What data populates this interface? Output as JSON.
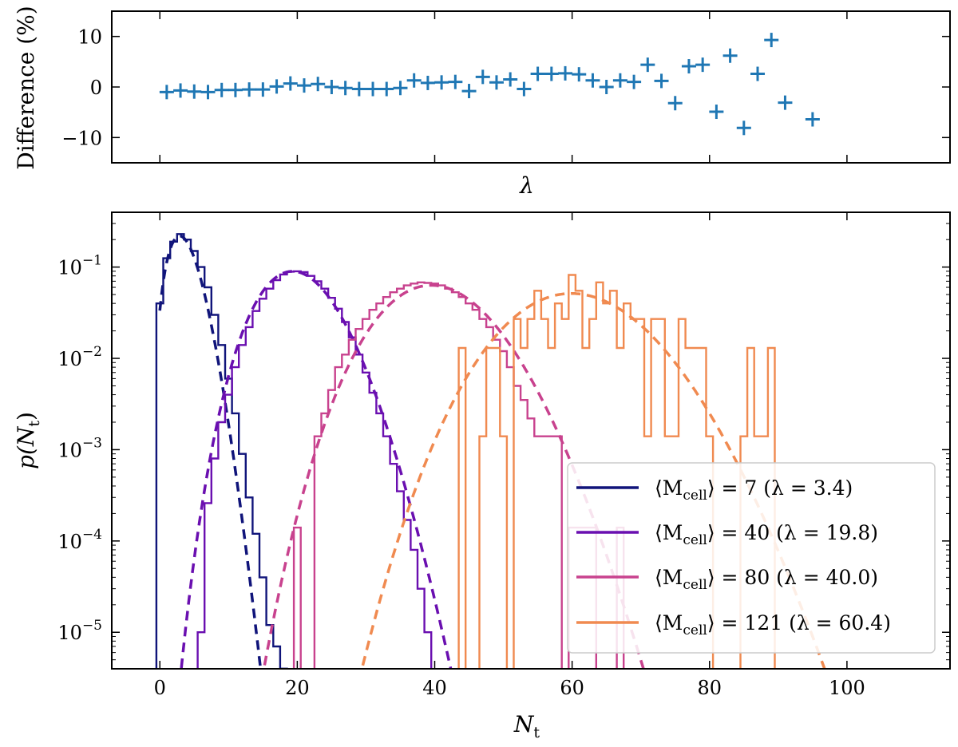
{
  "chart_data": [
    {
      "type": "scatter",
      "name": "difference-panel",
      "xlabel": "λ",
      "ylabel": "Difference (%)",
      "xlim": [
        -7,
        115
      ],
      "ylim": [
        -15,
        15
      ],
      "yticks": [
        10,
        0,
        -10
      ],
      "ytick_labels": [
        "10",
        "0",
        "−10"
      ],
      "xticks": [
        0,
        20,
        40,
        60,
        80,
        100
      ],
      "marker": "+",
      "color": "#1f77b4",
      "x": [
        1,
        3,
        5,
        7,
        9,
        11,
        13,
        15,
        17,
        19,
        21,
        23,
        25,
        27,
        29,
        31,
        33,
        35,
        37,
        39,
        41,
        43,
        45,
        47,
        49,
        51,
        53,
        55,
        57,
        59,
        61,
        63,
        65,
        67,
        69,
        71,
        73,
        75,
        77,
        79,
        81,
        83,
        85,
        87,
        89,
        91,
        95
      ],
      "y": [
        -1,
        -0.7,
        -0.9,
        -1,
        -0.6,
        -0.6,
        -0.5,
        -0.5,
        0.1,
        0.7,
        0.3,
        0.6,
        0,
        -0.2,
        -0.4,
        -0.4,
        -0.4,
        -0.2,
        1.3,
        0.8,
        0.9,
        1,
        -0.8,
        2,
        0.9,
        1.5,
        -0.4,
        2.6,
        2.6,
        2.7,
        2.5,
        1.3,
        0,
        1.3,
        1,
        4.4,
        1.2,
        -3.2,
        4.1,
        4.4,
        -4.9,
        6.2,
        -8.1,
        2.6,
        9.3,
        -3.1,
        -6.4
      ]
    },
    {
      "type": "histogram",
      "name": "distribution-panel",
      "xlabel": "N",
      "xlabel_sub": "t",
      "ylabel": "p(N",
      "ylabel_sub": "t",
      "ylabel_close": ")",
      "xlim": [
        -7,
        115
      ],
      "ylim_log10": [
        -5.4,
        -0.4
      ],
      "xticks": [
        0,
        20,
        40,
        60,
        80,
        100
      ],
      "xtick_labels": [
        "0",
        "20",
        "40",
        "60",
        "80",
        "100"
      ],
      "yticks_exp": [
        -1,
        -2,
        -3,
        -4,
        -5
      ],
      "ytick_base": "10",
      "ytick_exps": [
        "−1",
        "−2",
        "−3",
        "−4",
        "−5"
      ],
      "series": [
        {
          "legend_pre": "⟨M",
          "legend_sub": "cell",
          "legend_post": "⟩ = 7 (λ = 3.4)",
          "color": "#10147a",
          "lambda": 3.4,
          "bins": [
            [
              0,
              0.04
            ],
            [
              1,
              0.125
            ],
            [
              2,
              0.19
            ],
            [
              3,
              0.23
            ],
            [
              4,
              0.2
            ],
            [
              5,
              0.15
            ],
            [
              6,
              0.1
            ],
            [
              7,
              0.06
            ],
            [
              8,
              0.03
            ],
            [
              9,
              0.014
            ],
            [
              10,
              0.006
            ],
            [
              11,
              0.0025
            ],
            [
              12,
              0.0009
            ],
            [
              13,
              0.0003
            ],
            [
              14,
              0.00012
            ],
            [
              15,
              4e-05
            ],
            [
              16,
              1.2e-05
            ],
            [
              17,
              7e-06
            ],
            [
              18,
              4e-06
            ]
          ]
        },
        {
          "legend_pre": "⟨M",
          "legend_sub": "cell",
          "legend_post": "⟩ = 40 (λ = 19.8)",
          "color": "#6a0fb0",
          "lambda": 19.8,
          "bins": [
            [
              6,
              1e-05
            ],
            [
              7,
              0.00026
            ],
            [
              8,
              0.0008
            ],
            [
              9,
              0.002
            ],
            [
              10,
              0.004
            ],
            [
              11,
              0.008
            ],
            [
              12,
              0.014
            ],
            [
              13,
              0.022
            ],
            [
              14,
              0.033
            ],
            [
              15,
              0.045
            ],
            [
              16,
              0.058
            ],
            [
              17,
              0.072
            ],
            [
              18,
              0.083
            ],
            [
              19,
              0.089
            ],
            [
              20,
              0.09
            ],
            [
              21,
              0.088
            ],
            [
              22,
              0.08
            ],
            [
              23,
              0.07
            ],
            [
              24,
              0.058
            ],
            [
              25,
              0.046
            ],
            [
              26,
              0.035
            ],
            [
              27,
              0.025
            ],
            [
              28,
              0.017
            ],
            [
              29,
              0.011
            ],
            [
              30,
              0.007
            ],
            [
              31,
              0.0042
            ],
            [
              32,
              0.0025
            ],
            [
              33,
              0.0014
            ],
            [
              34,
              0.0007
            ],
            [
              35,
              0.00035
            ],
            [
              36,
              0.00017
            ],
            [
              37,
              8e-05
            ],
            [
              38,
              3e-05
            ],
            [
              39,
              1e-05
            ]
          ]
        },
        {
          "legend_pre": "⟨M",
          "legend_sub": "cell",
          "legend_post": "⟩ = 80 (λ = 40.0)",
          "color": "#c8428e",
          "lambda": 40.0,
          "bins": [
            [
              20,
              0.00014
            ],
            [
              23,
              0.0014
            ],
            [
              24,
              0.0025
            ],
            [
              25,
              0.0045
            ],
            [
              26,
              0.008
            ],
            [
              27,
              0.011
            ],
            [
              28,
              0.016
            ],
            [
              29,
              0.021
            ],
            [
              30,
              0.027
            ],
            [
              31,
              0.034
            ],
            [
              32,
              0.04
            ],
            [
              33,
              0.047
            ],
            [
              34,
              0.053
            ],
            [
              35,
              0.058
            ],
            [
              36,
              0.063
            ],
            [
              37,
              0.066
            ],
            [
              38,
              0.068
            ],
            [
              39,
              0.067
            ],
            [
              40,
              0.066
            ],
            [
              41,
              0.063
            ],
            [
              42,
              0.058
            ],
            [
              43,
              0.053
            ],
            [
              44,
              0.047
            ],
            [
              45,
              0.04
            ],
            [
              46,
              0.034
            ],
            [
              47,
              0.027
            ],
            [
              48,
              0.022
            ],
            [
              49,
              0.016
            ],
            [
              50,
              0.012
            ],
            [
              51,
              0.008
            ],
            [
              52,
              0.005
            ],
            [
              53,
              0.0035
            ],
            [
              54,
              0.0022
            ],
            [
              55,
              0.0014
            ],
            [
              56,
              0.0014
            ],
            [
              57,
              0.0014
            ],
            [
              58,
              0.0014
            ],
            [
              60,
              0.00014
            ],
            [
              61,
              0.00014
            ],
            [
              62,
              0.00014
            ],
            [
              63,
              0.00014
            ],
            [
              67,
              0.00014
            ]
          ]
        },
        {
          "legend_pre": "⟨M",
          "legend_sub": "cell",
          "legend_post": "⟩ = 121 (λ = 60.4)",
          "color": "#f08a50",
          "lambda": 60.4,
          "bins": [
            [
              44,
              0.013
            ],
            [
              47,
              0.0014
            ],
            [
              48,
              0.013
            ],
            [
              49,
              0.013
            ],
            [
              50,
              0.0014
            ],
            [
              52,
              0.027
            ],
            [
              53,
              0.013
            ],
            [
              54,
              0.027
            ],
            [
              55,
              0.055
            ],
            [
              56,
              0.027
            ],
            [
              57,
              0.013
            ],
            [
              58,
              0.04
            ],
            [
              59,
              0.027
            ],
            [
              60,
              0.082
            ],
            [
              61,
              0.055
            ],
            [
              62,
              0.013
            ],
            [
              63,
              0.027
            ],
            [
              64,
              0.068
            ],
            [
              65,
              0.04
            ],
            [
              66,
              0.055
            ],
            [
              67,
              0.013
            ],
            [
              68,
              0.04
            ],
            [
              69,
              0.027
            ],
            [
              70,
              0.027
            ],
            [
              71,
              0.0014
            ],
            [
              72,
              0.027
            ],
            [
              73,
              0.027
            ],
            [
              74,
              0.0014
            ],
            [
              75,
              0.0014
            ],
            [
              76,
              0.027
            ],
            [
              77,
              0.013
            ],
            [
              78,
              0.013
            ],
            [
              79,
              0.013
            ],
            [
              80,
              0.0014
            ],
            [
              85,
              0.0014
            ],
            [
              86,
              0.013
            ],
            [
              87,
              0.0014
            ],
            [
              88,
              0.0014
            ],
            [
              89,
              0.013
            ]
          ]
        }
      ]
    }
  ]
}
